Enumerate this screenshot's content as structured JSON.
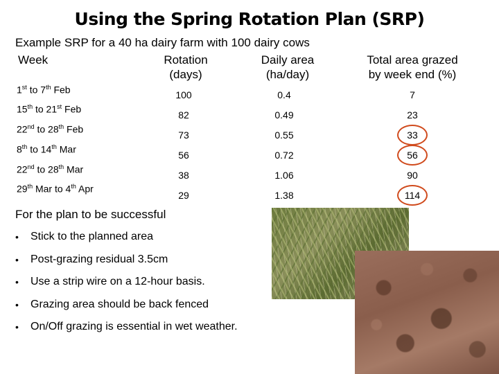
{
  "title": "Using the Spring Rotation Plan (SRP)",
  "subtitle": "Example SRP for a 40 ha dairy farm with 100 dairy cows",
  "headers": {
    "week": "Week",
    "rotation_line1": "Rotation",
    "rotation_line2": "(days)",
    "daily_line1": "Daily area",
    "daily_line2": "(ha/day)",
    "total_line1": "Total area grazed",
    "total_line2": "by week end (%)"
  },
  "weeks": [
    {
      "start_num": "1",
      "start_suffix": "st",
      "middle": " to 7",
      "end_suffix": "th",
      "tail": " Feb"
    },
    {
      "start_num": "15",
      "start_suffix": "th",
      "middle": " to 21",
      "end_suffix": "st",
      "tail": " Feb"
    },
    {
      "start_num": "22",
      "start_suffix": "nd",
      "middle": " to 28",
      "end_suffix": "th",
      "tail": " Feb"
    },
    {
      "start_num": "8",
      "start_suffix": "th",
      "middle": " to 14",
      "end_suffix": "th",
      "tail": " Mar"
    },
    {
      "start_num": "22",
      "start_suffix": "nd",
      "middle": " to 28",
      "end_suffix": "th",
      "tail": " Mar"
    },
    {
      "start_num": "29",
      "start_suffix": "th",
      "middle": " Mar to 4",
      "end_suffix": "th",
      "tail": " Apr"
    }
  ],
  "rows": [
    {
      "rotation": "100",
      "daily": "0.4",
      "total": "7"
    },
    {
      "rotation": "82",
      "daily": "0.49",
      "total": "23"
    },
    {
      "rotation": "73",
      "daily": "0.55",
      "total": "33"
    },
    {
      "rotation": "56",
      "daily": "0.72",
      "total": "56"
    },
    {
      "rotation": "38",
      "daily": "1.06",
      "total": "90"
    },
    {
      "rotation": "29",
      "daily": "1.38",
      "total": "114"
    }
  ],
  "highlight_color": "#d04a1c",
  "plan_heading": "For the plan to be successful",
  "bullet_char": "•",
  "bullets": [
    "Stick to the planned area",
    "Post-grazing residual 3.5cm",
    "Use a strip wire on a 12-hour basis.",
    "Grazing area should be back fenced",
    "On/Off grazing is essential in wet weather."
  ]
}
